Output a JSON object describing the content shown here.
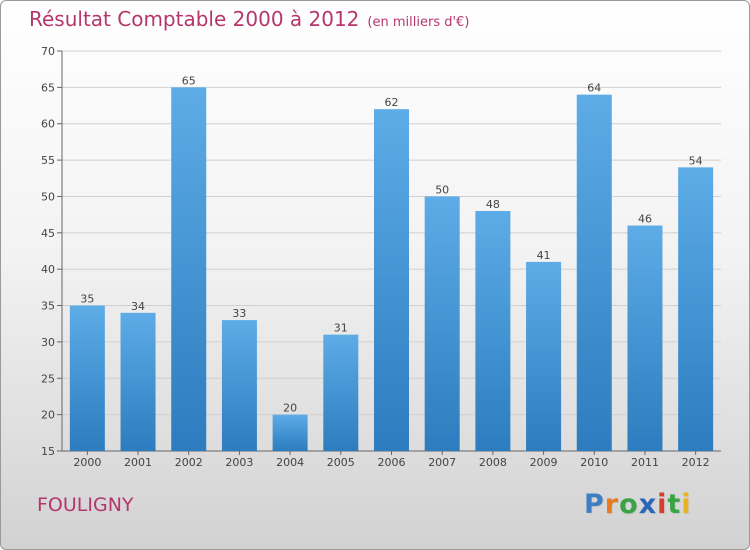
{
  "chart_data": {
    "type": "bar",
    "title": "Résultat Comptable 2000 à 2012",
    "subtitle": "(en milliers d'€)",
    "categories": [
      "2000",
      "2001",
      "2002",
      "2003",
      "2004",
      "2005",
      "2006",
      "2007",
      "2008",
      "2009",
      "2010",
      "2011",
      "2012"
    ],
    "values": [
      35,
      34,
      65,
      33,
      20,
      31,
      62,
      50,
      48,
      41,
      64,
      46,
      54
    ],
    "ylim": [
      15,
      70
    ],
    "yticks": [
      15,
      20,
      25,
      30,
      35,
      40,
      45,
      50,
      55,
      60,
      65,
      70
    ],
    "xlabel": "",
    "ylabel": "",
    "grid": true
  },
  "location": "FOULIGNY",
  "brand": {
    "letters": [
      "P",
      "r",
      "o",
      "x",
      "i",
      "t",
      "i"
    ],
    "colors": [
      "#3e7fc3",
      "#e87b1f",
      "#3aa346",
      "#2a66b8",
      "#d63d2b",
      "#3aa346",
      "#e8b31f"
    ]
  },
  "colors": {
    "bar_light": "#5dace7",
    "bar_dark": "#2c7cbf",
    "title": "#b5366b",
    "grid": "#d0d0d0"
  }
}
